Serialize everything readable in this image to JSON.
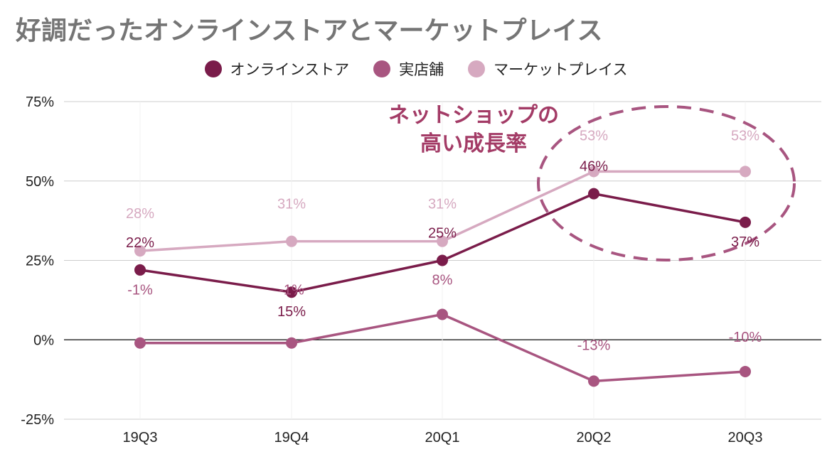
{
  "chart_data": {
    "type": "line",
    "title": "好調だったオンラインストアとマーケットプレイス",
    "xlabel": "",
    "ylabel": "",
    "categories": [
      "19Q3",
      "19Q4",
      "20Q1",
      "20Q2",
      "20Q3"
    ],
    "series": [
      {
        "name": "オンラインストア",
        "color": "#7a1c4a",
        "values": [
          22,
          15,
          25,
          46,
          37
        ]
      },
      {
        "name": "実店舗",
        "color": "#a85580",
        "values": [
          -1,
          -1,
          8,
          -13,
          -10
        ]
      },
      {
        "name": "マーケットプレイス",
        "color": "#d6a9c0",
        "values": [
          28,
          31,
          31,
          53,
          53
        ]
      }
    ],
    "y_ticks": [
      "75%",
      "50%",
      "25%",
      "0%",
      "-25%"
    ],
    "ylim": [
      -25,
      75
    ],
    "legend_position": "top",
    "grid": true,
    "annotation": {
      "line1": "ネットショップの",
      "line2": "高い成長率"
    }
  }
}
